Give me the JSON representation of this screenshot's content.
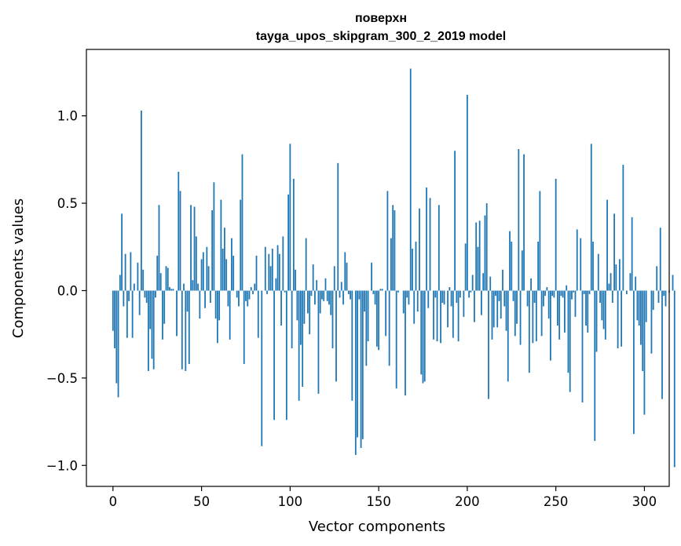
{
  "chart_data": {
    "type": "bar",
    "title_lines": [
      "поверхн",
      "tayga_upos_skipgram_300_2_2019 model"
    ],
    "xlabel": "Vector components",
    "ylabel": "Components values",
    "xlim": [
      -15,
      314
    ],
    "ylim": [
      -1.12,
      1.38
    ],
    "xticks": [
      0,
      50,
      100,
      150,
      200,
      250,
      300
    ],
    "xtick_labels": [
      "0",
      "50",
      "100",
      "150",
      "200",
      "250",
      "300"
    ],
    "yticks": [
      -1.0,
      -0.5,
      0.0,
      0.5,
      1.0
    ],
    "ytick_labels": [
      "−1.0",
      "−0.5",
      "0.0",
      "0.5",
      "1.0"
    ],
    "bar_color": "#1f77b4",
    "grid": false,
    "values": [
      -0.23,
      -0.33,
      -0.53,
      -0.61,
      0.09,
      0.44,
      -0.09,
      0.21,
      -0.27,
      -0.06,
      0.22,
      -0.27,
      0.04,
      0.0,
      0.16,
      -0.14,
      1.03,
      0.12,
      -0.04,
      -0.07,
      -0.46,
      -0.22,
      -0.39,
      -0.45,
      -0.04,
      0.2,
      0.49,
      0.1,
      -0.28,
      -0.19,
      0.14,
      0.13,
      0.02,
      0.01,
      0.01,
      0.0,
      -0.26,
      0.68,
      0.57,
      -0.45,
      0.04,
      -0.46,
      -0.12,
      -0.42,
      0.49,
      0.06,
      0.48,
      0.31,
      0.04,
      -0.16,
      0.18,
      0.22,
      -0.1,
      0.25,
      0.14,
      -0.07,
      0.46,
      0.62,
      -0.16,
      -0.3,
      -0.17,
      0.52,
      0.24,
      0.36,
      0.18,
      -0.09,
      -0.28,
      0.3,
      0.2,
      0.0,
      -0.04,
      -0.09,
      0.52,
      0.78,
      -0.42,
      -0.06,
      -0.09,
      -0.05,
      0.02,
      -0.02,
      0.04,
      0.2,
      -0.27,
      0.0,
      -0.89,
      0.0,
      0.25,
      -0.02,
      0.21,
      0.14,
      0.24,
      -0.74,
      0.07,
      0.26,
      0.21,
      -0.2,
      0.31,
      -0.01,
      -0.74,
      0.55,
      0.84,
      -0.33,
      0.64,
      0.12,
      -0.17,
      -0.63,
      -0.31,
      -0.55,
      -0.19,
      0.3,
      -0.13,
      -0.25,
      -0.03,
      0.15,
      -0.08,
      0.06,
      -0.59,
      -0.13,
      -0.05,
      -0.06,
      0.07,
      -0.06,
      -0.08,
      -0.14,
      -0.33,
      0.14,
      -0.52,
      0.73,
      -0.04,
      0.05,
      -0.08,
      0.22,
      0.16,
      -0.02,
      -0.05,
      -0.63,
      0.0,
      -0.94,
      -0.84,
      -0.05,
      -0.9,
      -0.85,
      -0.12,
      -0.43,
      -0.29,
      0.0,
      0.16,
      -0.02,
      -0.08,
      -0.32,
      -0.34,
      0.01,
      0.01,
      0.0,
      -0.26,
      0.57,
      -0.43,
      0.3,
      0.49,
      0.46,
      -0.56,
      -0.01,
      0.0,
      0.0,
      -0.13,
      -0.6,
      -0.04,
      -0.08,
      1.27,
      0.24,
      -0.19,
      0.28,
      -0.12,
      0.47,
      -0.48,
      -0.53,
      -0.52,
      0.59,
      -0.1,
      0.53,
      0.0,
      -0.28,
      -0.04,
      -0.29,
      0.49,
      -0.3,
      -0.07,
      -0.08,
      0.0,
      -0.21,
      0.02,
      -0.09,
      -0.27,
      0.8,
      -0.07,
      -0.29,
      -0.04,
      0.0,
      -0.15,
      0.27,
      1.12,
      -0.04,
      -0.01,
      0.09,
      -0.18,
      0.39,
      0.25,
      0.4,
      -0.14,
      0.1,
      0.43,
      0.5,
      -0.62,
      0.08,
      -0.28,
      -0.21,
      -0.03,
      -0.21,
      -0.06,
      -0.16,
      0.12,
      -0.09,
      -0.23,
      -0.52,
      0.34,
      0.28,
      -0.06,
      -0.26,
      -0.19,
      0.81,
      -0.31,
      0.23,
      0.78,
      0.0,
      -0.09,
      -0.47,
      0.07,
      -0.3,
      -0.07,
      -0.29,
      0.28,
      0.57,
      -0.26,
      -0.09,
      -0.03,
      0.02,
      -0.16,
      -0.4,
      -0.03,
      -0.04,
      0.64,
      -0.2,
      -0.28,
      -0.03,
      -0.04,
      -0.24,
      0.03,
      -0.47,
      -0.58,
      -0.05,
      -0.01,
      -0.15,
      0.35,
      0.0,
      0.3,
      -0.64,
      -0.02,
      -0.2,
      -0.24,
      -0.02,
      0.84,
      0.28,
      -0.86,
      -0.35,
      0.21,
      -0.07,
      -0.17,
      -0.22,
      -0.28,
      0.52,
      0.04,
      0.1,
      -0.07,
      0.44,
      0.15,
      -0.33,
      0.18,
      -0.32,
      0.72,
      0.0,
      -0.02,
      0.0,
      0.1,
      0.42,
      -0.82,
      0.08,
      -0.17,
      -0.2,
      -0.31,
      -0.46,
      -0.71,
      -0.18,
      0.0,
      0.0,
      -0.36,
      -0.11,
      0.0,
      0.14,
      -0.07,
      0.36,
      -0.62,
      -0.03,
      -0.09,
      0.0,
      -0.01,
      0.0,
      0.09,
      -1.01
    ]
  }
}
